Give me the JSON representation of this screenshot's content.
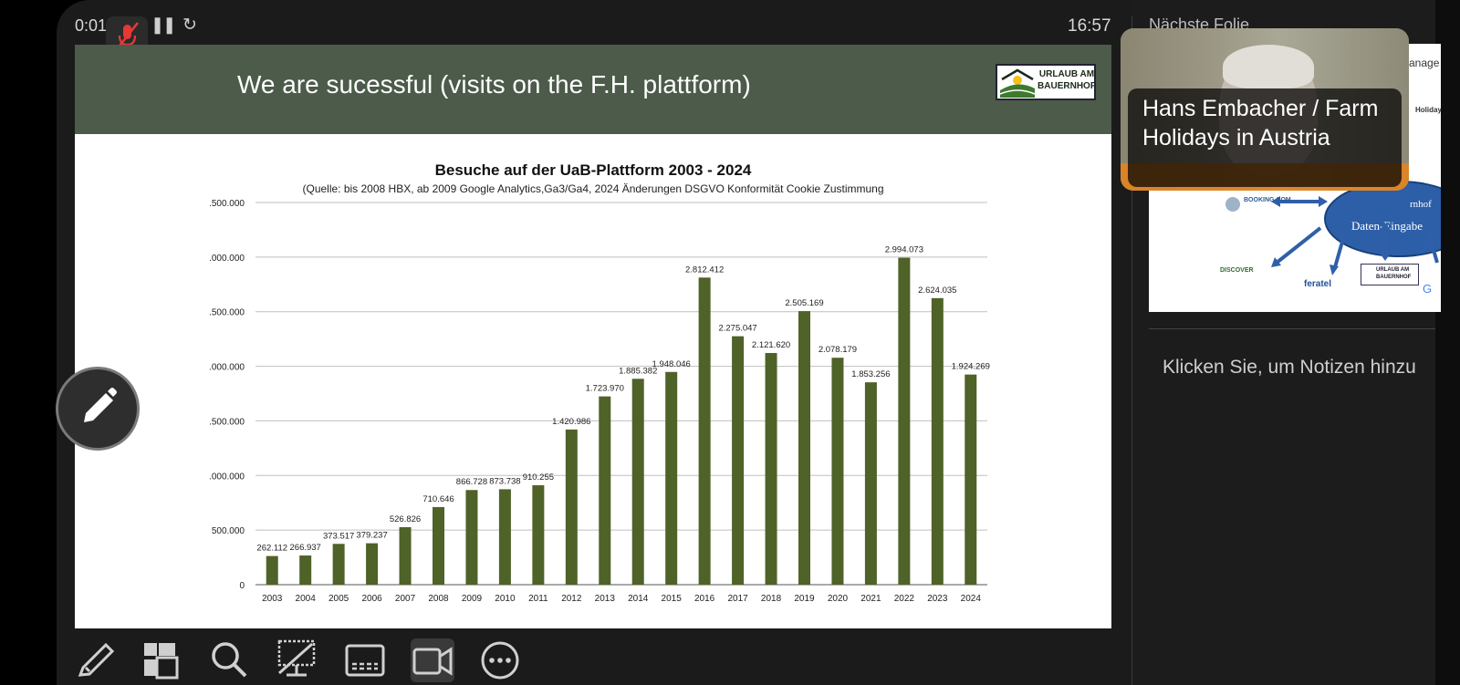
{
  "topbar": {
    "elapsed_time": "0:01",
    "clock": "16:57",
    "next_slide_label": "Nächste Folie"
  },
  "slide": {
    "title": "We are sucessful (visits on the F.H. plattform)",
    "logo_text": "URLAUB AM BAUERNHOF"
  },
  "chart_data": {
    "type": "bar",
    "title": "Besuche auf der UaB-Plattform 2003 - 2024",
    "subtitle": "(Quelle: bis 2008 HBX, ab 2009 Google Analytics,Ga3/Ga4, 2024 Änderungen DSGVO Konformität Cookie Zustimmung",
    "categories": [
      "2003",
      "2004",
      "2005",
      "2006",
      "2007",
      "2008",
      "2009",
      "2010",
      "2011",
      "2012",
      "2013",
      "2014",
      "2015",
      "2016",
      "2017",
      "2018",
      "2019",
      "2020",
      "2021",
      "2022",
      "2023",
      "2024"
    ],
    "values": [
      262112,
      266937,
      373517,
      379237,
      526826,
      710646,
      866728,
      873738,
      910255,
      1420986,
      1723970,
      1885382,
      1948046,
      2812412,
      2275047,
      2121620,
      2505169,
      2078179,
      1853256,
      2994073,
      2624035,
      1924269
    ],
    "data_labels": [
      "262.112",
      "266.937",
      "373.517",
      "379.237",
      "526.826",
      "710.646",
      "866.728",
      "873.738",
      "910.255",
      "1.420.986",
      "1.723.970",
      "1.885.382",
      "1.948.046",
      "2.812.412",
      "2.275.047",
      "2.121.620",
      "2.505.169",
      "2.078.179",
      "1.853.256",
      "2.994.073",
      "2.624.035",
      "1.924.269"
    ],
    "y_tick_values": [
      0,
      500000,
      1000000,
      1500000,
      2000000,
      2500000,
      3000000,
      3500000
    ],
    "y_tick_labels": [
      "0",
      "500.000",
      ".000.000",
      ".500.000",
      ".000.000",
      ".500.000",
      ".000.000",
      ".500.000"
    ],
    "ylim": [
      0,
      3500000
    ],
    "grid": true,
    "bar_color": "#4f6228"
  },
  "video": {
    "caption": "Hans Embacher / Farm Holidays in Austria"
  },
  "next_slide_preview": {
    "top_text": "anage",
    "holiday_text": "Holiday",
    "blob_label": "rnhof",
    "blob_title": "Daten-Eingabe",
    "booking_text": "BOOKING.COM",
    "discover_text": "DISCOVER",
    "feratel_text": "feratel",
    "logo_text": "URLAUB AM BAUERNHOF",
    "google_letter": "G"
  },
  "notes": {
    "placeholder": "Klicken Sie, um Notizen hinzu"
  },
  "icons": {
    "mic": "mic-muted-icon",
    "pause": "pause-icon",
    "restart": "restart-icon",
    "pen": "pen-icon",
    "layout": "layout-icon",
    "zoom": "magnifier-icon",
    "screen": "screen-off-icon",
    "subtitles": "subtitles-icon",
    "camera": "camera-icon",
    "more": "more-icon"
  },
  "colors": {
    "slide_header": "#4c5b4a",
    "mic_muted": "#e53935",
    "accent_orange": "#e7841b"
  }
}
